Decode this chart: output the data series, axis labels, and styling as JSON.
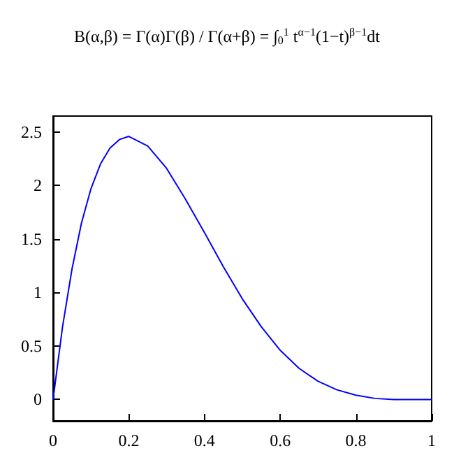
{
  "chart_data": {
    "type": "line",
    "title": "B(α,β) = Γ(α)Γ(β) / Γ(α+β) = ∫$_{0}$$^{1}$ t$^{α−1}$(1−t)$^{β−1}$dt",
    "x": [
      0,
      0.025,
      0.05,
      0.075,
      0.1,
      0.125,
      0.15,
      0.175,
      0.2,
      0.25,
      0.3,
      0.35,
      0.4,
      0.45,
      0.5,
      0.55,
      0.6,
      0.65,
      0.7,
      0.75,
      0.8,
      0.85,
      0.9,
      0.95,
      1
    ],
    "series": [
      {
        "color": "#0000ff",
        "values": [
          0,
          0.68,
          1.22,
          1.65,
          1.97,
          2.2,
          2.35,
          2.43,
          2.46,
          2.37,
          2.16,
          1.87,
          1.56,
          1.24,
          0.94,
          0.68,
          0.46,
          0.29,
          0.17,
          0.09,
          0.04,
          0.01,
          0,
          0,
          0
        ]
      }
    ],
    "xlim": [
      0,
      1
    ],
    "xticks": [
      0,
      0.2,
      0.4,
      0.6,
      0.8,
      1
    ],
    "ylim": [
      -0.2,
      2.65
    ],
    "yticks": [
      0,
      0.5,
      1,
      1.5,
      2,
      2.5
    ],
    "grid": false,
    "marker": "none",
    "line_style": "solid"
  }
}
